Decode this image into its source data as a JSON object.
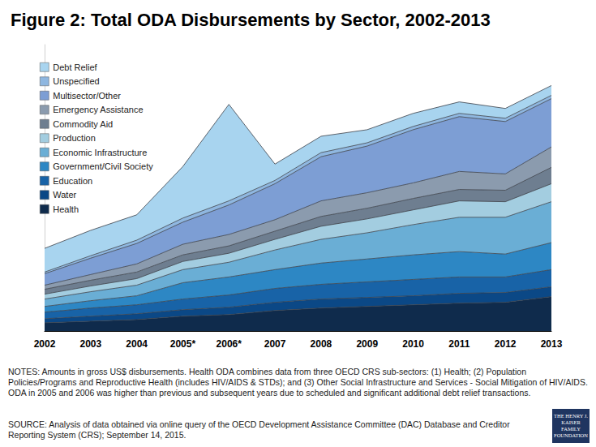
{
  "chart_data": {
    "type": "area",
    "title": "Figure 2: Total ODA Disbursements by Sector, 2002-2013",
    "notes": "NOTES: Amounts in gross US$ disbursements. Health ODA combines data from three OECD CRS sub-sectors: (1) Health; (2) Population Policies/Programs and Reproductive Health (includes HIV/AIDS & STDs); and (3) Other Social Infrastructure and Services - Social Mitigation of HIV/AIDS. ODA in 2005 and 2006 was higher than previous and subsequent years due to scheduled and significant additional debt relief transactions.",
    "source": "SOURCE: Analysis of data obtained via online query of the OECD Development Assistance Committee (DAC) Database and Creditor Reporting System (CRS); September 14, 2015.",
    "logo_text": "THE HENRY J. KAISER FAMILY FOUNDATION",
    "categories": [
      "2002",
      "2003",
      "2004",
      "2005*",
      "2006*",
      "2007",
      "2008",
      "2009",
      "2010",
      "2011",
      "2012",
      "2013"
    ],
    "stacked": true,
    "grid": false,
    "legend": "upper left",
    "tick_labels": "x",
    "ylim": [
      0,
      175
    ],
    "yticks": [],
    "series": [
      {
        "name": "Health",
        "color": "#0f2b4c",
        "values": [
          5,
          6,
          7,
          9,
          10,
          12.5,
          14,
          15,
          16,
          17,
          17.5,
          21
        ]
      },
      {
        "name": "Water",
        "color": "#0b4886",
        "values": [
          2.5,
          3,
          3.5,
          4,
          4.5,
          5,
          5.5,
          5.5,
          5.5,
          6,
          6,
          6
        ]
      },
      {
        "name": "Education",
        "color": "#1863a7",
        "values": [
          4,
          5,
          5.5,
          6.5,
          7.5,
          8.5,
          9,
          9.5,
          10,
          10,
          9.5,
          10.5
        ]
      },
      {
        "name": "Government/Civil Society",
        "color": "#2d87c4",
        "values": [
          3.5,
          4.5,
          5.5,
          10,
          11,
          11.5,
          13,
          14,
          15,
          15.5,
          14,
          16.5
        ]
      },
      {
        "name": "Economic Infrastructure",
        "color": "#6aaed5",
        "values": [
          4.5,
          5.5,
          6.5,
          8,
          9,
          12,
          14.5,
          16,
          18.5,
          21,
          22.5,
          25
        ]
      },
      {
        "name": "Production",
        "color": "#a3cde0",
        "values": [
          3,
          3.5,
          4,
          5,
          5.5,
          6.5,
          8,
          8.5,
          9,
          10,
          9.5,
          11
        ]
      },
      {
        "name": "Commodity Aid",
        "color": "#6e7e90",
        "values": [
          3,
          3.5,
          4,
          4,
          4.5,
          5,
          6,
          6.5,
          7,
          7,
          7,
          10
        ]
      },
      {
        "name": "Emergency Assistance",
        "color": "#8b9bae",
        "values": [
          2.5,
          3.5,
          5,
          6.5,
          7,
          7,
          9.5,
          9.5,
          9.5,
          11,
          10,
          12.5
        ]
      },
      {
        "name": "Multisector/Other",
        "color": "#7d9ed4",
        "values": [
          7,
          10,
          12.5,
          13.5,
          18,
          22,
          27,
          28.5,
          32.5,
          33.5,
          32,
          29.5
        ]
      },
      {
        "name": "Unspecified",
        "color": "#8fb7e0",
        "values": [
          1,
          1.5,
          2,
          2.5,
          2.5,
          2,
          2.5,
          2,
          2,
          2,
          2,
          2
        ]
      },
      {
        "name": "Debt Relief",
        "color": "#a8d4ef",
        "values": [
          14.5,
          15.5,
          15.5,
          31.5,
          59,
          10,
          10,
          8,
          8,
          7,
          6,
          6
        ]
      }
    ]
  }
}
